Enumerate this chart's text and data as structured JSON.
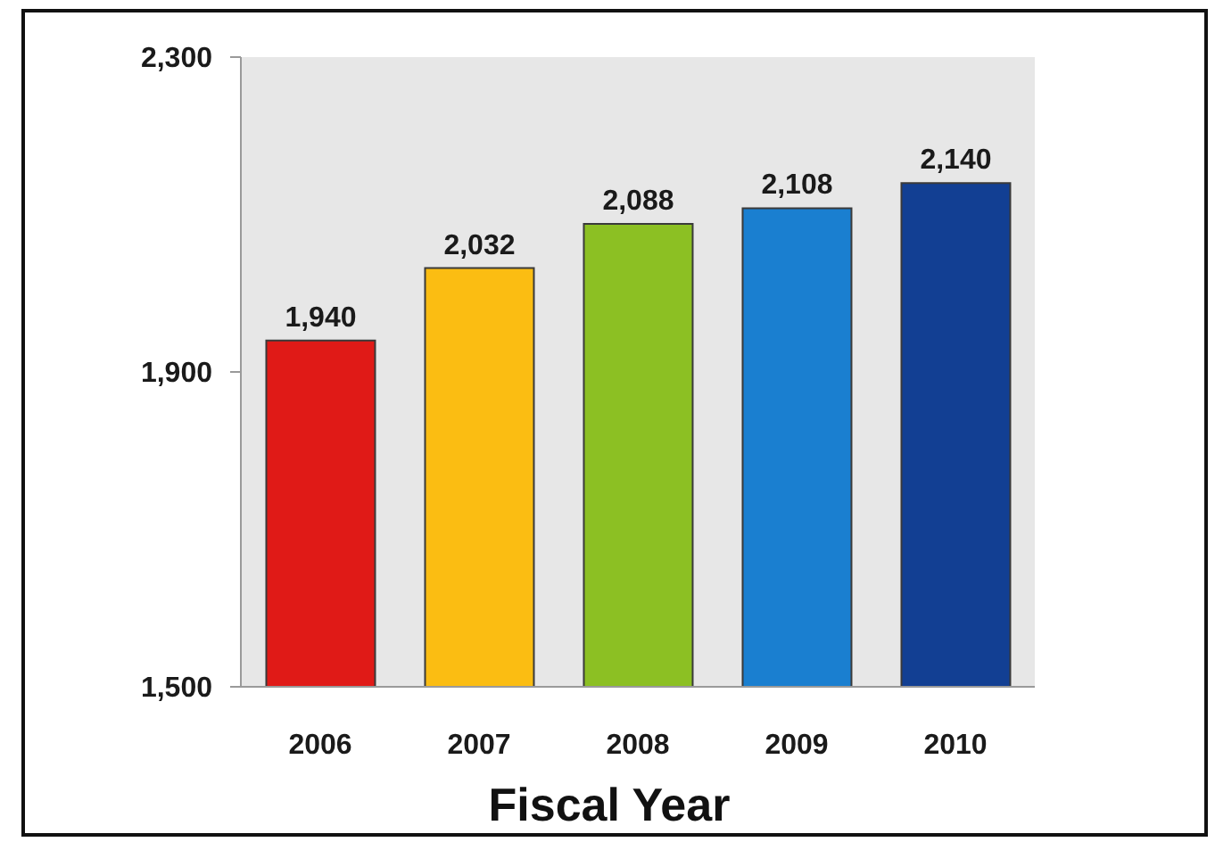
{
  "chart_data": {
    "type": "bar",
    "categories": [
      "2006",
      "2007",
      "2008",
      "2009",
      "2010"
    ],
    "values": [
      1940,
      2032,
      2088,
      2108,
      2140
    ],
    "value_labels": [
      "1,940",
      "2,032",
      "2,088",
      "2,108",
      "2,140"
    ],
    "colors": [
      "#e01a17",
      "#fbbd12",
      "#8cc023",
      "#1a7fd0",
      "#123f93"
    ],
    "xlabel": "Fiscal Year",
    "ylim": [
      1500,
      2300
    ],
    "yticks": [
      {
        "value": 1500,
        "label": "1,500"
      },
      {
        "value": 1900,
        "label": "1,900"
      },
      {
        "value": 2300,
        "label": "2,300"
      }
    ]
  }
}
